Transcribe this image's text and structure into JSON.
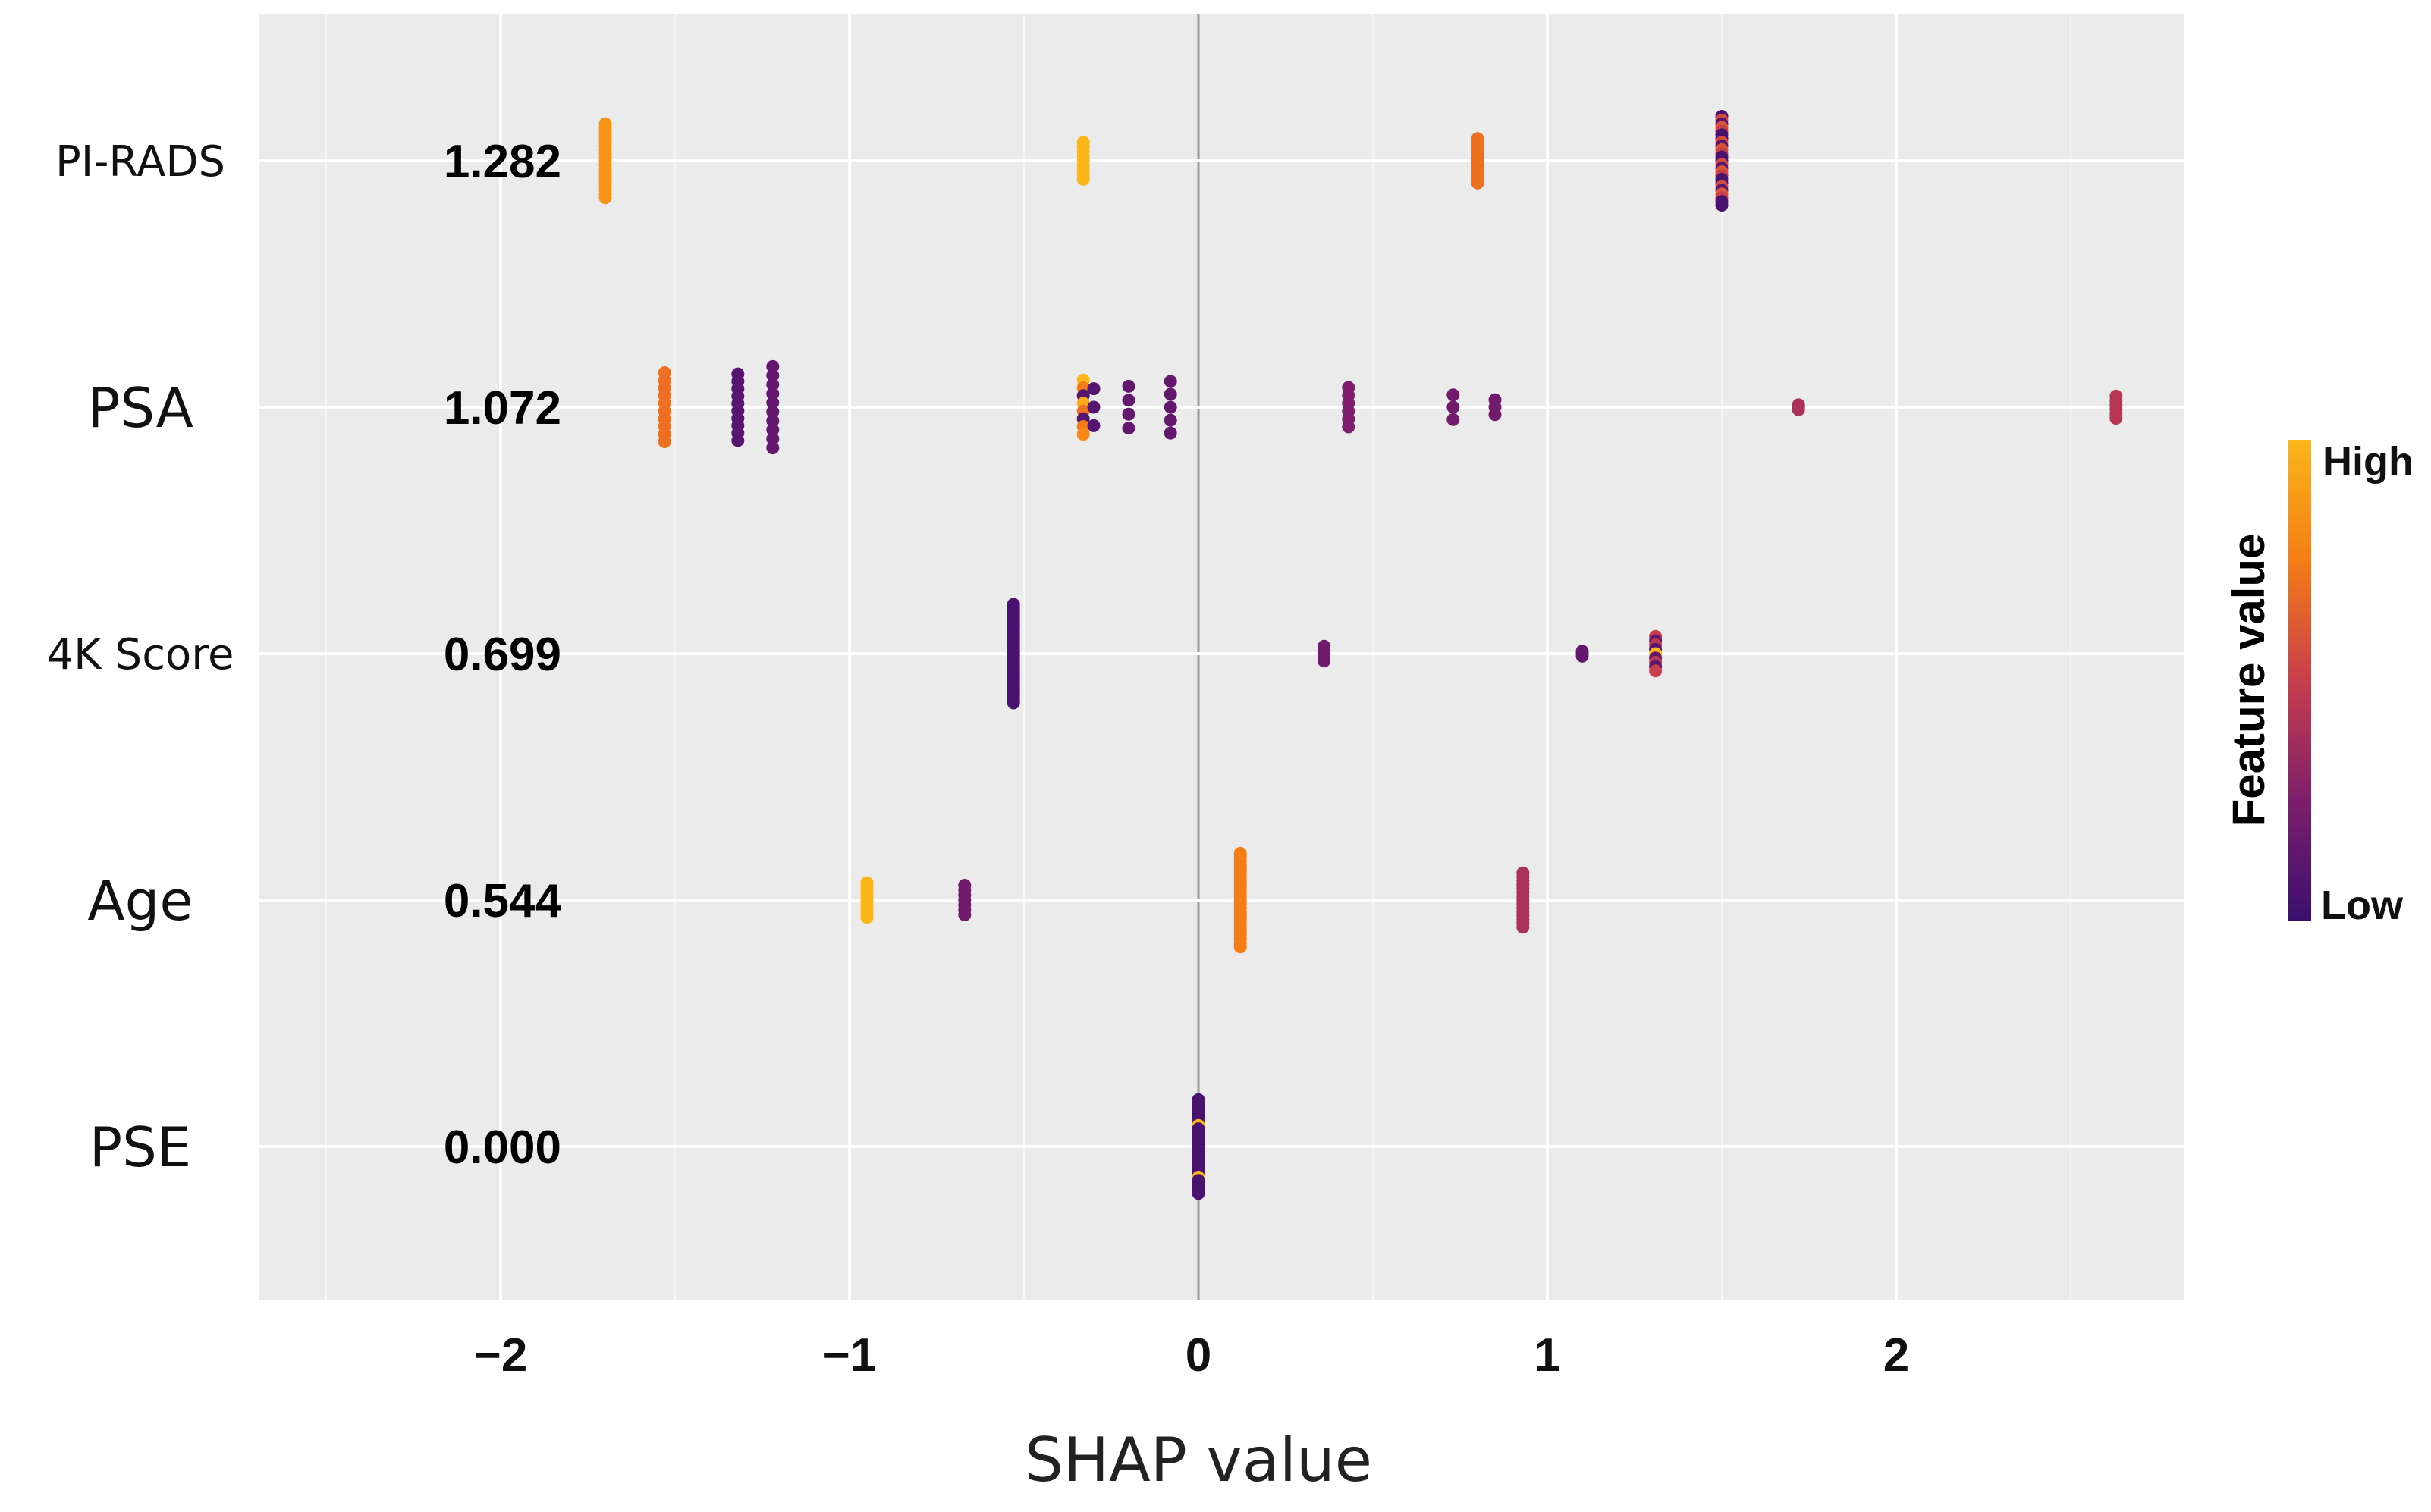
{
  "chart_data": {
    "type": "scatter",
    "subtype": "shap-beeswarm",
    "title": "",
    "xlabel": "SHAP value",
    "ylabel": "",
    "xlim": [
      -2.6,
      2.8
    ],
    "xticks": [
      -2,
      -1,
      0,
      1,
      2
    ],
    "xtick_labels": [
      "−2",
      "−1",
      "0",
      "1",
      "2"
    ],
    "grid": true,
    "legend": {
      "title": "Feature value",
      "high_label": "High",
      "low_label": "Low",
      "placement": "right",
      "colors": [
        "#fbb61a",
        "#f57d15",
        "#e35932",
        "#c73e4c",
        "#a32c61",
        "#7e1e6c",
        "#5a116e",
        "#3b0f6f"
      ]
    },
    "features": [
      {
        "name": "PI-RADS",
        "importance": "1.282",
        "clusters": [
          {
            "x": -1.7,
            "n": 21,
            "spread": 0.3,
            "v": 0.85
          },
          {
            "x": -0.33,
            "n": 9,
            "spread": 0.15,
            "v": 1.0
          },
          {
            "x": 0.8,
            "n": 12,
            "spread": 0.18,
            "v": 0.7
          },
          {
            "x": 1.5,
            "n": 25,
            "spread": 0.36,
            "v": "mixed"
          }
        ]
      },
      {
        "name": "PSA",
        "importance": "1.072",
        "clusters": [
          {
            "x": -1.53,
            "n": 10,
            "spread": 0.28,
            "v": 0.7
          },
          {
            "x": -1.32,
            "n": 10,
            "spread": 0.27,
            "v": 0.1
          },
          {
            "x": -1.22,
            "n": 10,
            "spread": 0.33,
            "v": 0.15
          },
          {
            "x": -0.33,
            "n": 8,
            "spread": 0.22,
            "v": "mixedHigh"
          },
          {
            "x": -0.3,
            "n": 3,
            "spread": 0.15,
            "v": 0.1
          },
          {
            "x": -0.2,
            "n": 4,
            "spread": 0.17,
            "v": 0.15
          },
          {
            "x": -0.08,
            "n": 5,
            "spread": 0.21,
            "v": 0.15
          },
          {
            "x": 0.43,
            "n": 6,
            "spread": 0.16,
            "v": 0.25
          },
          {
            "x": 0.73,
            "n": 3,
            "spread": 0.1,
            "v": 0.2
          },
          {
            "x": 0.85,
            "n": 3,
            "spread": 0.06,
            "v": 0.2
          },
          {
            "x": 1.72,
            "n": 3,
            "spread": 0.02,
            "v": 0.4
          },
          {
            "x": 2.63,
            "n": 6,
            "spread": 0.09,
            "v": 0.45
          }
        ]
      },
      {
        "name": "4K Score",
        "importance": "0.699",
        "clusters": [
          {
            "x": -0.53,
            "n": 40,
            "spread": 0.4,
            "v": 0.05
          },
          {
            "x": 0.36,
            "n": 5,
            "spread": 0.06,
            "v": 0.2
          },
          {
            "x": 1.1,
            "n": 3,
            "spread": 0.02,
            "v": 0.15
          },
          {
            "x": 1.31,
            "n": 9,
            "spread": 0.14,
            "v": "mixed4k"
          }
        ]
      },
      {
        "name": "Age",
        "importance": "0.544",
        "clusters": [
          {
            "x": -0.95,
            "n": 10,
            "spread": 0.14,
            "v": 1.0
          },
          {
            "x": -0.67,
            "n": 7,
            "spread": 0.12,
            "v": 0.2
          },
          {
            "x": 0.12,
            "n": 25,
            "spread": 0.38,
            "v": 0.75
          },
          {
            "x": 0.93,
            "n": 15,
            "spread": 0.22,
            "v": 0.4
          }
        ]
      },
      {
        "name": "PSE",
        "importance": "0.000",
        "clusters": [
          {
            "x": 0.0,
            "n": 30,
            "spread": 0.38,
            "v": "pse"
          }
        ]
      }
    ]
  }
}
